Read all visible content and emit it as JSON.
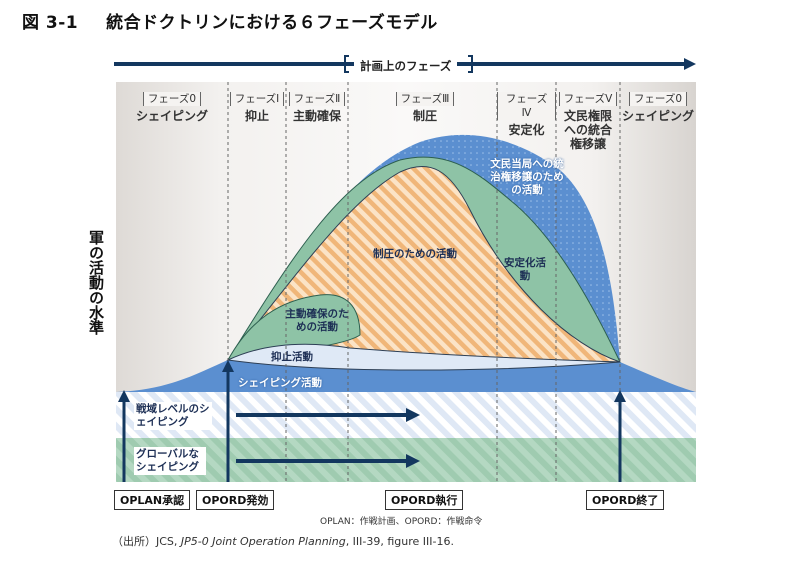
{
  "figure": {
    "number": "図 3-1",
    "title": "統合ドクトリンにおける６フェーズモデル",
    "plan_label": "計画上のフェーズ",
    "y_axis_label": "軍の活動の水準"
  },
  "phases": [
    {
      "bracket": "フェーズ0",
      "name": "シェイピング"
    },
    {
      "bracket": "フェーズⅠ",
      "name": "抑止"
    },
    {
      "bracket": "フェーズⅡ",
      "name": "主動確保"
    },
    {
      "bracket": "フェーズⅢ",
      "name": "制圧"
    },
    {
      "bracket": "フェーズⅣ",
      "name": "安定化"
    },
    {
      "bracket": "フェーズⅤ",
      "name": "文民権限への統合権移譲"
    },
    {
      "bracket": "フェーズ0",
      "name": "シェイピング"
    }
  ],
  "activities": {
    "civil": "文民当局への統治権移譲のための活動",
    "stabilize": "安定化活動",
    "dominate": "制圧のための活動",
    "seize": "主動確保のための活動",
    "deter": "抑止活動",
    "shape": "シェイピング活動"
  },
  "bands": {
    "theater": "戦域レベルのシェイピング",
    "global": "グローバルなシェイピング"
  },
  "events": [
    "OPLAN承認",
    "OPORD発効",
    "OPORD執行",
    "OPORD終了"
  ],
  "note": "OPLAN：作戦計画、OPORD：作戦命令",
  "source": {
    "prefix": "（出所）JCS, ",
    "title": "JP5-0 Joint Operation Planning",
    "suffix": ", III-39, figure III-16."
  },
  "colors": {
    "arrow_navy": "#13375f",
    "blue_fill": "#5b8fd0",
    "green_fill": "#8ec3a6",
    "hatch_orange": "#f2c08a",
    "band_blue": "#c9d9ee",
    "band_green": "#9fcbb0",
    "phase_bg": "#ebe8e5"
  }
}
